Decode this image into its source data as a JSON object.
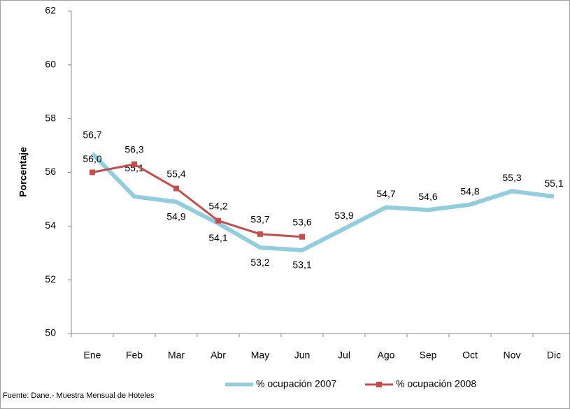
{
  "chart_data": {
    "type": "line",
    "y_label": "Porcentaje",
    "footnote": "Fuente: Dane.- Muestra Mensual de Hoteles",
    "categories": [
      "Ene",
      "Feb",
      "Mar",
      "Abr",
      "May",
      "Jun",
      "Jul",
      "Ago",
      "Sep",
      "Oct",
      "Nov",
      "Dic"
    ],
    "series": [
      {
        "name": "% ocupación 2007",
        "color": "#93cddd",
        "values": [
          56.7,
          55.1,
          54.9,
          54.1,
          53.2,
          53.1,
          53.9,
          54.7,
          54.6,
          54.8,
          55.3,
          55.1
        ],
        "value_labels": [
          "56,7",
          "55,1",
          "54,9",
          "54,1",
          "53,2",
          "53,1",
          "53,9",
          "54,7",
          "54,6",
          "54,8",
          "55,3",
          "55,1"
        ]
      },
      {
        "name": "% ocupación 2008",
        "color": "#c0504d",
        "values": [
          56.0,
          56.3,
          55.4,
          54.2,
          53.7,
          53.6,
          null,
          null,
          null,
          null,
          null,
          null
        ],
        "value_labels": [
          "56,0",
          "56,3",
          "55,4",
          "54,2",
          "53,7",
          "53,6",
          null,
          null,
          null,
          null,
          null,
          null
        ]
      }
    ],
    "ylim": [
      50,
      62
    ],
    "yticks": [
      50,
      52,
      54,
      56,
      58,
      60,
      62
    ],
    "legend": "bottom",
    "grid": false
  }
}
